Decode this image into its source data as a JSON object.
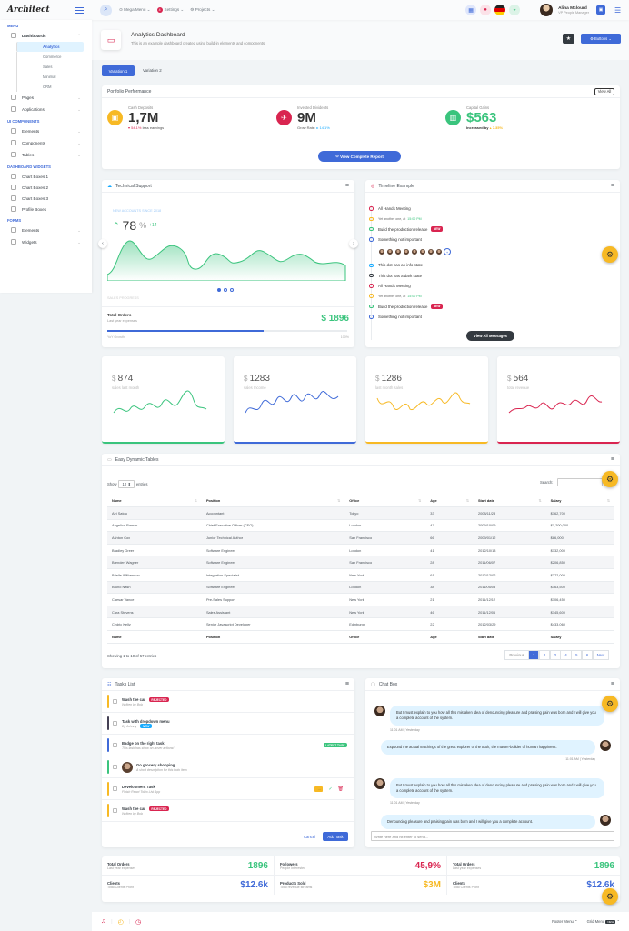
{
  "header": {
    "logo": "Architect",
    "mega_menu": "Mega Menu",
    "settings": "Settings",
    "settings_badge": "4",
    "projects": "Projects",
    "user_name": "Alina Mclourd",
    "user_role": "VP People Manager"
  },
  "sidebar": {
    "menu_heading": "Menu",
    "dashboards": "Dashboards",
    "sub": [
      "Analytics",
      "Commerce",
      "Sales",
      "Minimal",
      "CRM"
    ],
    "pages": "Pages",
    "applications": "Applications",
    "ui_heading": "UI Components",
    "elements": "Elements",
    "components": "Components",
    "tables": "Tables",
    "widgets_heading": "Dashboard Widgets",
    "widgets": [
      "Chart Boxes 1",
      "Chart Boxes 2",
      "Chart Boxes 3",
      "Profile Boxes"
    ],
    "forms_heading": "Forms",
    "forms": [
      "Elements",
      "Widgets"
    ]
  },
  "page": {
    "title": "Analytics Dashboard",
    "subtitle": "This is an example dashboard created using build-in elements and components.",
    "buttons_label": "Buttons",
    "tabs": [
      "Variation 1",
      "Variation 2"
    ]
  },
  "portfolio": {
    "title": "Portfolio Performance",
    "view_all": "View All",
    "items": [
      {
        "label": "Cash Deposits",
        "value": "1,7M",
        "change": "54.1%",
        "note": "less earnings"
      },
      {
        "label": "Invested Dividents",
        "value": "9M",
        "change": "14.1%",
        "note": "Grow Rate:"
      },
      {
        "label": "Capital Gains",
        "value": "$563",
        "change": "7.35%",
        "note": "Increased by"
      }
    ],
    "report_button": "View Complete Report"
  },
  "support": {
    "title": "Technical Support",
    "accounts_label": "New accounts since 2018",
    "value": "78",
    "unit": "%",
    "delta": "+14",
    "sales_label": "Sales Progress",
    "total_orders": "Total Orders",
    "last_year": "Last year expenses",
    "amount": "$ 1896",
    "yet": "YoY Growth",
    "pct": "100%",
    "progress": 0.65
  },
  "timeline": {
    "title": "Timeline Example",
    "items": [
      {
        "text": "All Hands Meeting",
        "color": "#d92550"
      },
      {
        "text": "Yet another one, at",
        "time": "15:00 PM",
        "color": "#f7b924"
      },
      {
        "text": "Build the production release",
        "badge": "NEW",
        "color": "#3ac47d"
      },
      {
        "text": "Something not important",
        "color": "#3f6ad8"
      },
      {
        "text": "",
        "color": "#fff"
      },
      {
        "text": "This dot has an info state",
        "color": "#16aaff"
      },
      {
        "text": "This dot has a dark state",
        "color": "#343a40"
      },
      {
        "text": "All Hands Meeting",
        "color": "#d92550"
      },
      {
        "text": "Yet another one, at",
        "time": "15:00 PM",
        "color": "#f7b924"
      },
      {
        "text": "Build the production release",
        "badge": "NEW",
        "color": "#3ac47d"
      },
      {
        "text": "Something not important",
        "color": "#3f6ad8"
      }
    ],
    "button": "View All Messages"
  },
  "minis": [
    {
      "value": "874",
      "label": "sales last month",
      "color": "#3ac47d"
    },
    {
      "value": "1283",
      "label": "sales Income",
      "color": "#3f6ad8"
    },
    {
      "value": "1286",
      "label": "last month sales",
      "color": "#f7b924"
    },
    {
      "value": "564",
      "label": "total revenue",
      "color": "#d92550"
    }
  ],
  "table": {
    "title": "Easy Dynamic Tables",
    "show": "Show",
    "entries_count": "10",
    "entries": "entries",
    "search": "Search:",
    "columns": [
      "Name",
      "Position",
      "Office",
      "Age",
      "Start date",
      "Salary"
    ],
    "rows": [
      [
        "Airi Satou",
        "Accountant",
        "Tokyo",
        "33",
        "2008/11/28",
        "$162,700"
      ],
      [
        "Angelica Ramos",
        "Chief Executive Officer (CEO)",
        "London",
        "47",
        "2009/10/09",
        "$1,200,000"
      ],
      [
        "Ashton Cox",
        "Junior Technical Author",
        "San Francisco",
        "66",
        "2009/01/12",
        "$86,000"
      ],
      [
        "Bradley Greer",
        "Software Engineer",
        "London",
        "41",
        "2012/10/13",
        "$132,000"
      ],
      [
        "Brenden Wagner",
        "Software Engineer",
        "San Francisco",
        "28",
        "2011/06/07",
        "$206,850"
      ],
      [
        "Brielle Williamson",
        "Integration Specialist",
        "New York",
        "61",
        "2012/12/02",
        "$372,000"
      ],
      [
        "Bruno Nash",
        "Software Engineer",
        "London",
        "38",
        "2011/05/03",
        "$163,500"
      ],
      [
        "Caesar Vance",
        "Pre-Sales Support",
        "New York",
        "21",
        "2011/12/12",
        "$106,450"
      ],
      [
        "Cara Stevens",
        "Sales Assistant",
        "New York",
        "46",
        "2011/12/06",
        "$145,600"
      ],
      [
        "Cedric Kelly",
        "Senior Javascript Developer",
        "Edinburgh",
        "22",
        "2012/03/29",
        "$433,060"
      ]
    ],
    "info": "Showing 1 to 10 of 57 entries",
    "pages": [
      "Previous",
      "1",
      "2",
      "3",
      "4",
      "5",
      "6",
      "Next"
    ]
  },
  "tasks": {
    "title": "Tasks List",
    "items": [
      {
        "t": "Wash the car",
        "s": "Written by Bob",
        "badge": "REJECTED",
        "color": "#f7b924"
      },
      {
        "t": "Task with dropdown menu",
        "s": "By Johnny",
        "badge2": "NEW",
        "color": "#444054"
      },
      {
        "t": "Badge on the right task",
        "s": "This task has show on hover actions!",
        "rbadge": "LATEST TASK",
        "color": "#3f6ad8"
      },
      {
        "t": "Go grocery shopping",
        "s": "A short description for this todo item",
        "color": "#3ac47d"
      },
      {
        "t": "Development Task",
        "s": "Finish React ToDo List App",
        "color": "#f7b924"
      },
      {
        "t": "Wash the car",
        "s": "Written by Bob",
        "badge": "REJECTED",
        "color": "#f7b924"
      }
    ],
    "cancel": "Cancel",
    "add": "Add Task"
  },
  "chat": {
    "title": "Chat Box",
    "messages": [
      {
        "text": "But I must explain to you how all this mistaken idea of denouncing pleasure and praising pain was born and I will give you a complete account of the system.",
        "time": "11:01 AM | Yesterday",
        "side": "left"
      },
      {
        "text": "Expound the actual teachings of the great explorer of the truth, the master-builder of human happiness.",
        "time": "11:01 AM | Yesterday",
        "side": "right"
      },
      {
        "text": "But I must explain to you how all this mistaken idea of denouncing pleasure and praising pain was born and I will give you a complete account of the system.",
        "time": "11:01 AM | Yesterday",
        "side": "left"
      },
      {
        "text": "Denouncing pleasure and praising pain was born and I will give you a complete account.",
        "side": "right"
      }
    ],
    "placeholder": "Write here and hit enter to send..."
  },
  "stats": [
    {
      "l": "Total Orders",
      "s": "Last year expenses",
      "v": "1896",
      "c": "#3ac47d"
    },
    {
      "l": "Followers",
      "s": "People Interested",
      "v": "45,9%",
      "c": "#d92550"
    },
    {
      "l": "Total Orders",
      "s": "Last year expenses",
      "v": "1896",
      "c": "#3ac47d"
    },
    {
      "l": "Clients",
      "s": "Total Clients Profit",
      "v": "$12.6k",
      "c": "#3f6ad8"
    },
    {
      "l": "Products Sold",
      "s": "Total revenue streams",
      "v": "$3M",
      "c": "#f7b924"
    },
    {
      "l": "Clients",
      "s": "Total Clients Profit",
      "v": "$12.6k",
      "c": "#3f6ad8"
    }
  ],
  "footer": {
    "menu": "Footer Menu",
    "grid": "Grid Menu",
    "grid_badge": "NEW"
  }
}
